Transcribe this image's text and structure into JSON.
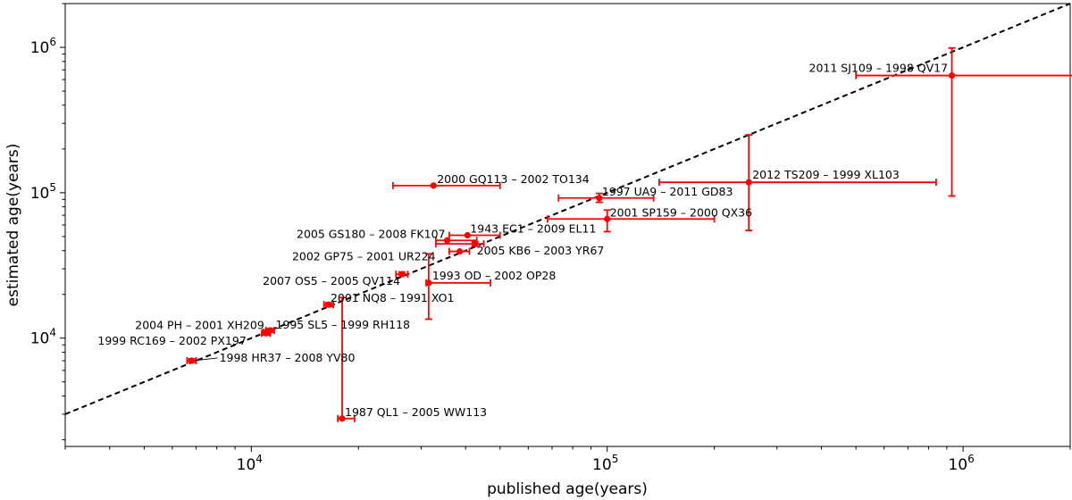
{
  "chart_data": {
    "type": "scatter",
    "title": "",
    "xlabel": "published age(years)",
    "ylabel": "estimated age(years)",
    "xscale": "log",
    "yscale": "log",
    "xlim": [
      3000,
      2000000
    ],
    "ylim": [
      1800,
      2000000
    ],
    "x_tick_labels": [
      {
        "value": 10000,
        "base": "10",
        "exp": "4"
      },
      {
        "value": 100000,
        "base": "10",
        "exp": "5"
      },
      {
        "value": 1000000,
        "base": "10",
        "exp": "6"
      }
    ],
    "y_tick_labels": [
      {
        "value": 10000,
        "base": "10",
        "exp": "4"
      },
      {
        "value": 100000,
        "base": "10",
        "exp": "5"
      },
      {
        "value": 1000000,
        "base": "10",
        "exp": "6"
      }
    ],
    "reference_line": {
      "style": "dashed",
      "color": "#000000",
      "relation": "y = x"
    },
    "marker_color": "#ff0000",
    "grid": false,
    "legend": "none",
    "points": [
      {
        "label": "2011 SJ109 – 1998 QV17",
        "x": 930000,
        "y": 640000,
        "xerr": [
          500000,
          2050000
        ],
        "yerr": [
          95000,
          990000
        ]
      },
      {
        "label": "2012 TS209 – 1999 XL103",
        "x": 250000,
        "y": 118000,
        "xerr": [
          140000,
          840000
        ],
        "yerr": [
          55000,
          250000
        ]
      },
      {
        "label": "2000 GQ113 – 2002 TO134",
        "x": 32500,
        "y": 112000,
        "xerr": [
          25000,
          50000
        ],
        "yerr": [
          112000,
          112000
        ]
      },
      {
        "label": "1997 UA9 – 2011 GD83",
        "x": 95000,
        "y": 92000,
        "xerr": [
          73000,
          135000
        ],
        "yerr": [
          86000,
          99000
        ]
      },
      {
        "label": "2001 SP159 – 2000 QX36",
        "x": 100000,
        "y": 66000,
        "xerr": [
          68000,
          200000
        ],
        "yerr": [
          54000,
          76000
        ]
      },
      {
        "label": "1943 EC1 – 2009 EL11",
        "x": 40500,
        "y": 51000,
        "xerr": [
          36000,
          50000
        ],
        "yerr": [
          51000,
          51000
        ]
      },
      {
        "label": "2005 GS180 – 2008 FK107",
        "x": 35500,
        "y": 47000,
        "xerr": [
          33000,
          43000
        ],
        "yerr": [
          47000,
          47000
        ]
      },
      {
        "label": "2005 KB6 – 2003 YR67",
        "x": 42500,
        "y": 44500,
        "xerr": [
          33000,
          45000
        ],
        "yerr": [
          43000,
          46000
        ]
      },
      {
        "label": "2002 GP75 – 2001 UR224",
        "x": 38500,
        "y": 39500,
        "xerr": [
          36000,
          41000
        ],
        "yerr": [
          39500,
          39500
        ]
      },
      {
        "label": "2007 OS5 – 2005 QV114",
        "x": 26500,
        "y": 27500,
        "xerr": [
          25500,
          27500
        ],
        "yerr": [
          27000,
          28500
        ]
      },
      {
        "label": "1993 OD – 2002 OP28",
        "x": 31500,
        "y": 24000,
        "xerr": [
          31000,
          47000
        ],
        "yerr": [
          13500,
          38000
        ]
      },
      {
        "label": "2001 NQ8 – 1991 XO1",
        "x": 16500,
        "y": 17000,
        "xerr": [
          16000,
          17000
        ],
        "yerr": [
          16500,
          17500
        ]
      },
      {
        "label": "1995 SL5 – 1999 RH118",
        "x": 11300,
        "y": 11300,
        "xerr": [
          11000,
          11600
        ],
        "yerr": [
          11000,
          11600
        ]
      },
      {
        "label": "2004 PH – 2001 XH209",
        "x": 11000,
        "y": 10800,
        "xerr": [
          10700,
          11300
        ],
        "yerr": [
          10500,
          11100
        ]
      },
      {
        "label": "1999 RC169 – 2002 PX197",
        "x": 11000,
        "y": 11000,
        "xerr": [
          10800,
          11200
        ],
        "yerr": [
          10800,
          11200
        ]
      },
      {
        "label": "1998 HR37 – 2008 YV80",
        "x": 6800,
        "y": 7000,
        "xerr": [
          6600,
          7000
        ],
        "yerr": [
          6800,
          7200
        ]
      },
      {
        "label": "1987 QL1 – 2005 WW113",
        "x": 18000,
        "y": 2800,
        "xerr": [
          17500,
          19500
        ],
        "yerr": [
          2800,
          19000
        ]
      }
    ]
  }
}
